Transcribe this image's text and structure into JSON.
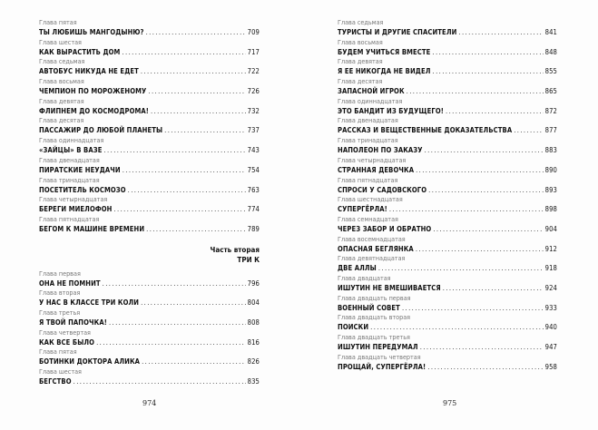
{
  "left_page": {
    "entries": [
      {
        "label": "Глава пятая",
        "title": "ТЫ ЛЮБИШЬ МАНГОДЫНЮ?",
        "page": "709"
      },
      {
        "label": "Глава шестая",
        "title": "КАК ВЫРАСТИТЬ ДОМ",
        "page": "717"
      },
      {
        "label": "Глава седьмая",
        "title": "АВТОБУС НИКУДА НЕ ЕДЕТ",
        "page": "722"
      },
      {
        "label": "Глава восьмая",
        "title": "ЧЕМПИОН ПО МОРОЖЕНОМУ",
        "page": "726"
      },
      {
        "label": "Глава девятая",
        "title": "ФЛИПНЕМ ДО КОСМОДРОМА!",
        "page": "732"
      },
      {
        "label": "Глава десятая",
        "title": "ПАССАЖИР ДО ЛЮБОЙ ПЛАНЕТЫ",
        "page": "737"
      },
      {
        "label": "Глава одиннадцатая",
        "title": "«ЗАЙЦЫ» В ВАЗЕ",
        "page": "743"
      },
      {
        "label": "Глава двенадцатая",
        "title": "ПИРАТСКИЕ НЕУДАЧИ",
        "page": "754"
      },
      {
        "label": "Глава тринадцатая",
        "title": "ПОСЕТИТЕЛЬ КОСМОЗО",
        "page": "763"
      },
      {
        "label": "Глава четырнадцатая",
        "title": "БЕРЕГИ МИЕЛОФОН",
        "page": "774"
      },
      {
        "label": "Глава пятнадцатая",
        "title": "БЕГОМ К МАШИНЕ ВРЕМЕНИ",
        "page": "789"
      }
    ],
    "part": {
      "label": "Часть вторая",
      "title": "ТРИ К"
    },
    "part_entries": [
      {
        "label": "Глава первая",
        "title": "ОНА НЕ ПОМНИТ",
        "page": "796"
      },
      {
        "label": "Глава вторая",
        "title": "У НАС В КЛАССЕ ТРИ КОЛИ",
        "page": "804"
      },
      {
        "label": "Глава третья",
        "title": "Я ТВОЙ ПАПОЧКА!",
        "page": "808"
      },
      {
        "label": "Глава четвертая",
        "title": "КАК ВСЕ БЫЛО",
        "page": "816"
      },
      {
        "label": "Глава пятая",
        "title": "БОТИНКИ ДОКТОРА АЛИКА",
        "page": "826"
      },
      {
        "label": "Глава шестая",
        "title": "БЕГСТВО",
        "page": "835"
      }
    ],
    "folio": "974"
  },
  "right_page": {
    "entries": [
      {
        "label": "Глава седьмая",
        "title": "ТУРИСТЫ И ДРУГИЕ СПАСИТЕЛИ",
        "page": "841"
      },
      {
        "label": "Глава восьмая",
        "title": "БУДЕМ УЧИТЬСЯ ВМЕСТЕ",
        "page": "848"
      },
      {
        "label": "Глава девятая",
        "title": "Я ЕЕ НИКОГДА НЕ ВИДЕЛ",
        "page": "855"
      },
      {
        "label": "Глава десятая",
        "title": "ЗАПАСНОЙ ИГРОК",
        "page": "865"
      },
      {
        "label": "Глава одиннадцатая",
        "title": "ЭТО БАНДИТ ИЗ БУДУЩЕГО!",
        "page": "872"
      },
      {
        "label": "Глава двенадцатая",
        "title": "РАССКАЗ И ВЕЩЕСТВЕННЫЕ ДОКАЗАТЕЛЬСТВА",
        "page": "877"
      },
      {
        "label": "Глава тринадцатая",
        "title": "НАПОЛЕОН ПО ЗАКАЗУ",
        "page": "883"
      },
      {
        "label": "Глава четырнадцатая",
        "title": "СТРАННАЯ ДЕВОЧКА",
        "page": "890"
      },
      {
        "label": "Глава пятнадцатая",
        "title": "СПРОСИ У САДОВСКОГО",
        "page": "893"
      },
      {
        "label": "Глава шестнадцатая",
        "title": "СУПЕРГЁРЛА!",
        "page": "898"
      },
      {
        "label": "Глава семнадцатая",
        "title": "ЧЕРЕЗ ЗАБОР И ОБРАТНО",
        "page": "904"
      },
      {
        "label": "Глава восемнадцатая",
        "title": "ОПАСНАЯ БЕГЛЯНКА",
        "page": "912"
      },
      {
        "label": "Глава девятнадцатая",
        "title": "ДВЕ АЛЛЫ",
        "page": "918"
      },
      {
        "label": "Глава двадцатая",
        "title": "ИШУТИН НЕ ВМЕШИВАЕТСЯ",
        "page": "924"
      },
      {
        "label": "Глава двадцать первая",
        "title": "ВОЕННЫЙ СОВЕТ",
        "page": "933"
      },
      {
        "label": "Глава двадцать вторая",
        "title": "ПОИСКИ",
        "page": "940"
      },
      {
        "label": "Глава двадцать третья",
        "title": "ИШУТИН ПЕРЕДУМАЛ",
        "page": "947"
      },
      {
        "label": "Глава двадцать четвертая",
        "title": "ПРОЩАЙ, СУПЕРГЁРЛА!",
        "page": "958"
      }
    ],
    "folio": "975"
  }
}
